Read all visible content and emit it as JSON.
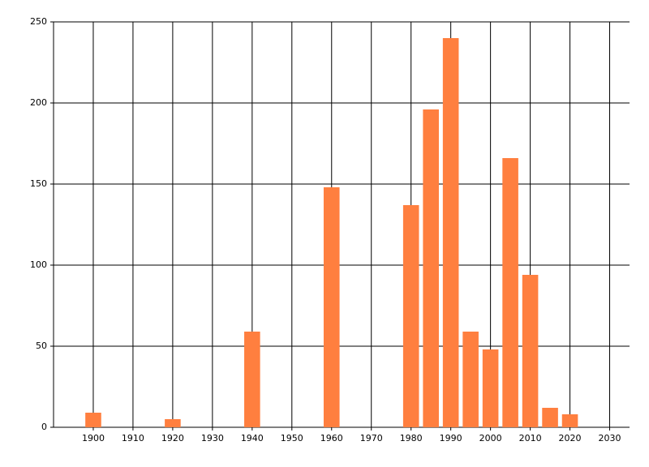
{
  "chart_data": {
    "type": "bar",
    "x": [
      1900,
      1920,
      1940,
      1960,
      1980,
      1985,
      1990,
      1995,
      2000,
      2005,
      2010,
      2015,
      2020
    ],
    "values": [
      9,
      5,
      59,
      148,
      137,
      196,
      240,
      59,
      48,
      166,
      94,
      12,
      8
    ],
    "color": "#ff7f3f",
    "xlim": [
      1890,
      2035
    ],
    "xticks": [
      1900,
      1910,
      1920,
      1930,
      1940,
      1950,
      1960,
      1970,
      1980,
      1990,
      2000,
      2010,
      2020,
      2030
    ],
    "ylim": [
      0,
      250
    ],
    "yticks": [
      0,
      50,
      100,
      150,
      200,
      250
    ],
    "grid": true
  }
}
